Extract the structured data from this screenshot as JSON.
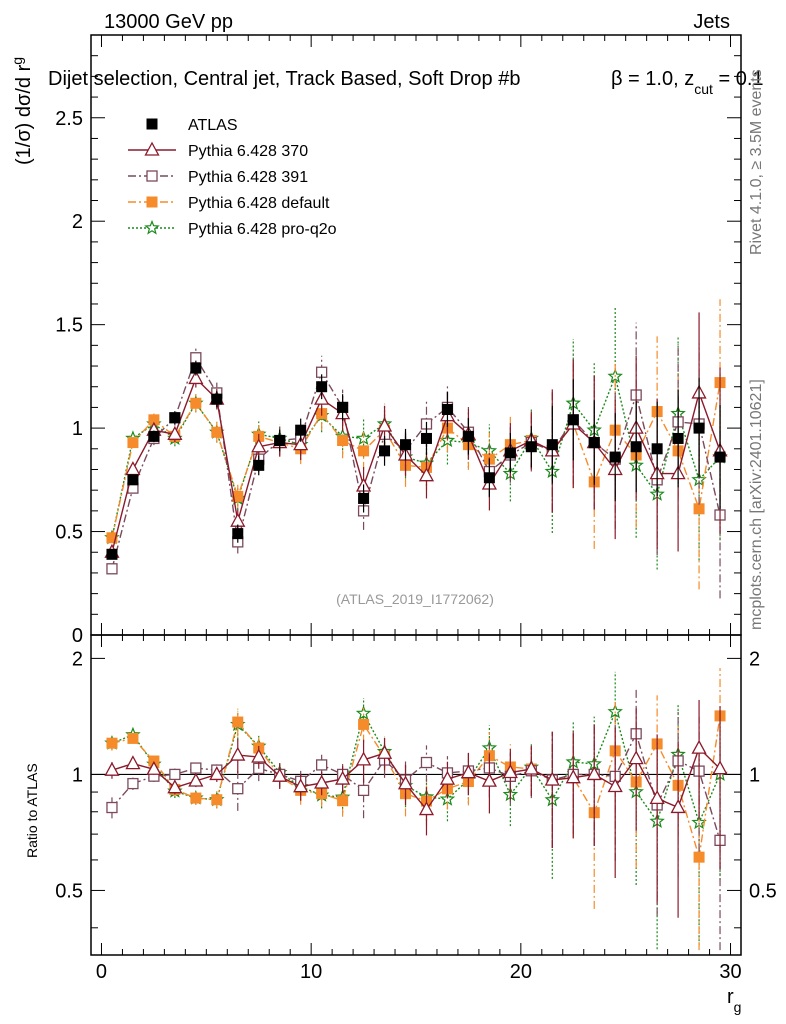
{
  "header": {
    "left": "13000 GeV pp",
    "right": "Jets"
  },
  "side_labels": {
    "rivet": "Rivet 4.1.0, ≥ 3.5M events",
    "mcplots": "mcplots.cern.ch [arXiv:2401.10621]"
  },
  "chart_data": {
    "type": "scatter",
    "title": "Dijet selection, Central jet, Track Based, Soft Drop #b = 1.0, z_cut = 0.1",
    "title_main": "Dijet selection, Central jet, Track Based, Soft Drop #b",
    "title_beta": "β = 1.0, z",
    "title_sub": "cut",
    "title_tail": " = 0.1",
    "watermark": "(ATLAS_2019_I1772062)",
    "xlabel": "r",
    "xlabel_sub": "g",
    "ylabel": "(1/σ) dσ/d r",
    "ylabel_sub": "g",
    "ratio_ylabel": "Ratio to ATLAS",
    "xlim": [
      -0.5,
      30.5
    ],
    "ylim": [
      0,
      2.9
    ],
    "ratio_ylim": [
      0.34,
      2.3
    ],
    "x_ticks": [
      "0",
      "10",
      "20",
      "30"
    ],
    "y_ticks": [
      "0",
      "0.5",
      "1",
      "1.5",
      "2",
      "2.5"
    ],
    "ratio_ticks": [
      "0.5",
      "1",
      "2"
    ],
    "x": [
      0.5,
      1.5,
      2.5,
      3.5,
      4.5,
      5.5,
      6.5,
      7.5,
      8.5,
      9.5,
      10.5,
      11.5,
      12.5,
      13.5,
      14.5,
      15.5,
      16.5,
      17.5,
      18.5,
      19.5,
      20.5,
      21.5,
      22.5,
      23.5,
      24.5,
      25.5,
      26.5,
      27.5,
      28.5,
      29.5
    ],
    "series": [
      {
        "name": "ATLAS",
        "color": "#000000",
        "marker": "square-filled",
        "line": "none",
        "values": [
          0.39,
          0.75,
          0.96,
          1.05,
          1.29,
          1.14,
          0.49,
          0.82,
          0.94,
          0.99,
          1.2,
          1.1,
          0.66,
          0.89,
          0.92,
          0.95,
          1.09,
          0.96,
          0.76,
          0.88,
          0.91,
          0.92,
          1.04,
          0.93,
          0.86,
          0.91,
          0.9,
          0.95,
          1.0,
          0.86
        ]
      },
      {
        "name": "Pythia 6.428 370",
        "color": "#8b1a2b",
        "marker": "triangle-open",
        "line": "solid",
        "values": [
          0.4,
          0.8,
          0.99,
          0.97,
          1.24,
          1.14,
          0.55,
          0.91,
          0.93,
          0.92,
          1.14,
          1.07,
          0.72,
          1.01,
          0.87,
          0.77,
          1.06,
          0.97,
          0.73,
          0.89,
          0.94,
          0.89,
          1.02,
          0.93,
          0.8,
          1.0,
          0.78,
          0.78,
          1.17,
          0.89
        ]
      },
      {
        "name": "Pythia 6.428 391",
        "color": "#7a4a5c",
        "marker": "square-open",
        "line": "dashdot",
        "values": [
          0.32,
          0.71,
          0.95,
          1.05,
          1.34,
          1.17,
          0.45,
          0.85,
          0.94,
          0.95,
          1.27,
          1.1,
          0.6,
          0.97,
          0.89,
          1.02,
          1.1,
          0.98,
          0.79,
          0.87,
          0.93,
          0.89,
          1.04,
          0.93,
          0.85,
          1.16,
          0.75,
          1.03,
          1.02,
          0.58
        ]
      },
      {
        "name": "Pythia 6.428 default",
        "color": "#f58b2a",
        "marker": "square-filled",
        "line": "dashdot",
        "values": [
          0.47,
          0.93,
          1.04,
          0.96,
          1.12,
          0.98,
          0.67,
          0.96,
          0.93,
          0.9,
          1.07,
          0.94,
          0.89,
          0.99,
          0.82,
          0.81,
          1.0,
          0.92,
          0.85,
          0.92,
          0.94,
          0.89,
          1.02,
          0.74,
          0.99,
          0.87,
          1.08,
          0.89,
          0.61,
          1.22
        ]
      },
      {
        "name": "Pythia 6.428 pro-q2o",
        "color": "#1a8a1a",
        "marker": "star",
        "line": "dotted",
        "values": [
          0.47,
          0.95,
          1.02,
          0.95,
          1.12,
          0.98,
          0.66,
          0.97,
          0.95,
          0.92,
          1.06,
          0.96,
          0.95,
          1.02,
          0.86,
          0.83,
          0.94,
          0.93,
          0.89,
          0.78,
          0.95,
          0.79,
          1.12,
          0.99,
          1.25,
          0.82,
          0.68,
          1.07,
          0.75,
          0.86
        ]
      }
    ]
  }
}
